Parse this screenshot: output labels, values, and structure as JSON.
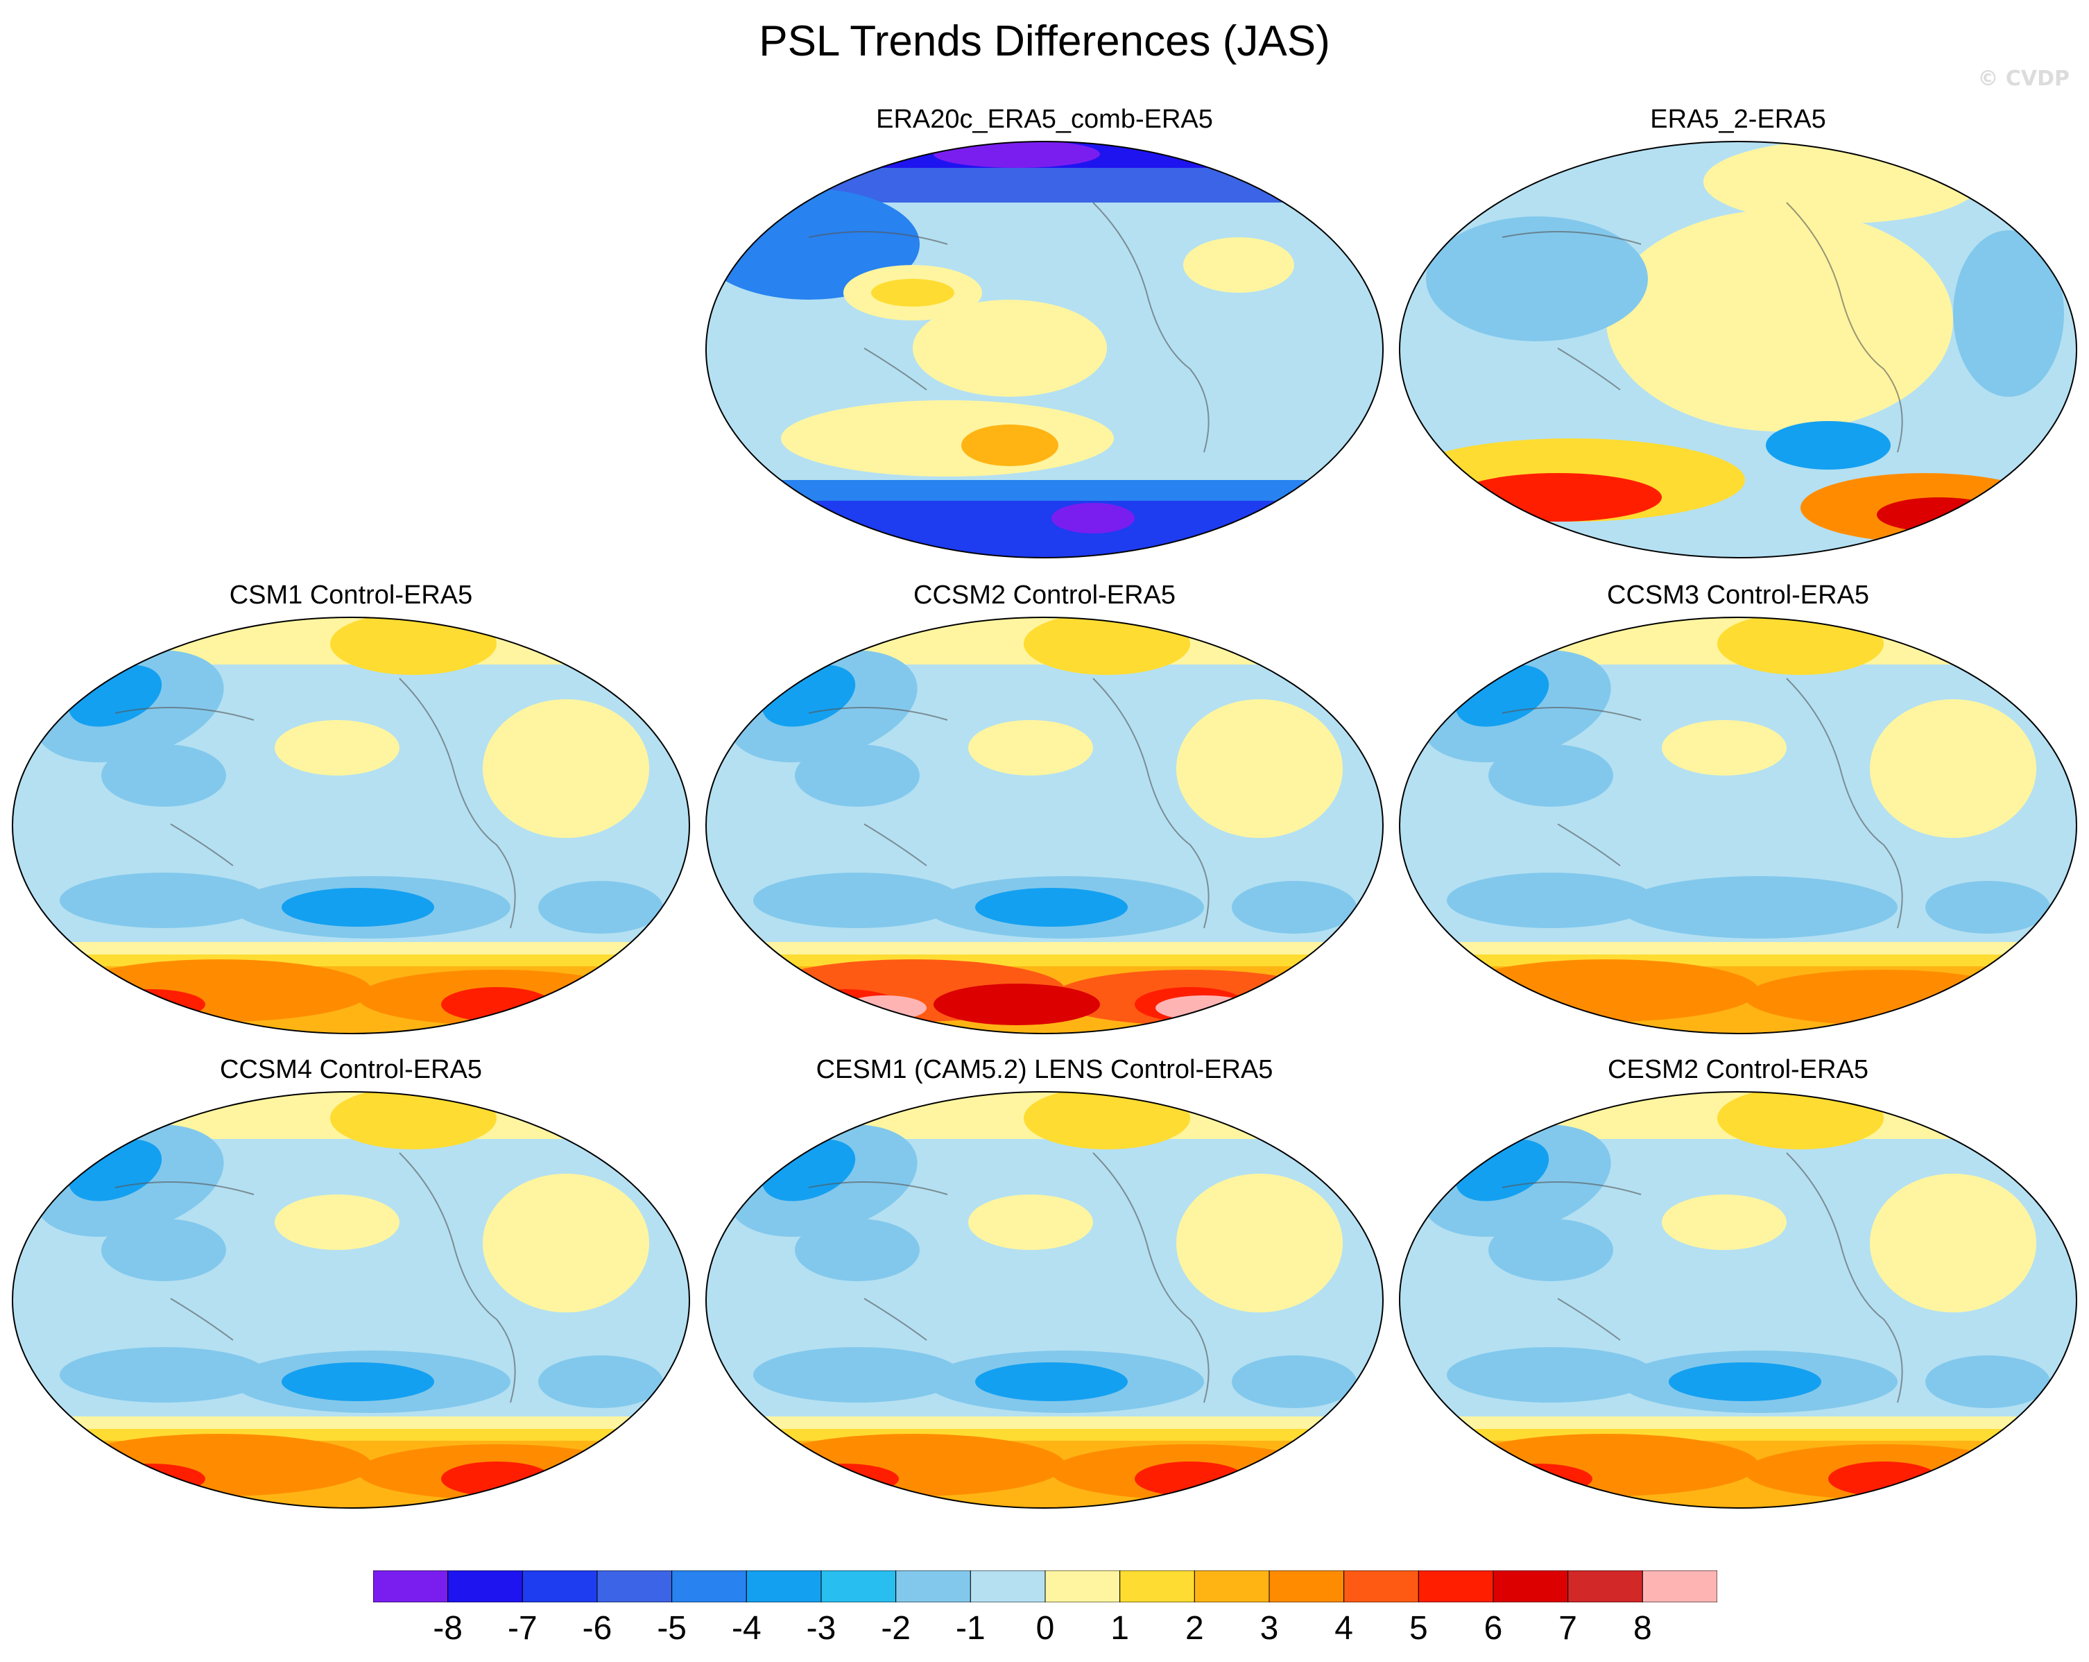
{
  "title": "PSL Trends Differences (JAS)",
  "watermark": "© CVDP",
  "panels": [
    {
      "id": "era20c",
      "title": "ERA20c_ERA5_comb-ERA5",
      "pattern": "era20c"
    },
    {
      "id": "era5_2",
      "title": "ERA5_2-ERA5",
      "pattern": "era52"
    },
    {
      "id": "csm1",
      "title": "CSM1 Control-ERA5",
      "pattern": "csm1"
    },
    {
      "id": "ccsm2",
      "title": "CCSM2 Control-ERA5",
      "pattern": "ccsm2"
    },
    {
      "id": "ccsm3",
      "title": "CCSM3 Control-ERA5",
      "pattern": "ccsm3"
    },
    {
      "id": "ccsm4",
      "title": "CCSM4 Control-ERA5",
      "pattern": "ccsm4"
    },
    {
      "id": "cesm1",
      "title": "CESM1 (CAM5.2) LENS Control-ERA5",
      "pattern": "cesm1"
    },
    {
      "id": "cesm2",
      "title": "CESM2 Control-ERA5",
      "pattern": "cesm2"
    }
  ],
  "colorbar": {
    "labels": [
      "-8",
      "-7",
      "-6",
      "-5",
      "-4",
      "-3",
      "-2",
      "-1",
      "0",
      "1",
      "2",
      "3",
      "4",
      "5",
      "6",
      "7",
      "8"
    ],
    "colors": [
      "#7a1ef0",
      "#1e14f0",
      "#1e3cf0",
      "#3c64e6",
      "#2882f0",
      "#14a0f0",
      "#28bef0",
      "#82c8ec",
      "#b4e0f2",
      "#fff5a0",
      "#ffdc32",
      "#ffb414",
      "#ff8c00",
      "#ff5a14",
      "#ff1e00",
      "#dc0000",
      "#d22828",
      "#ffb4b4"
    ]
  }
}
